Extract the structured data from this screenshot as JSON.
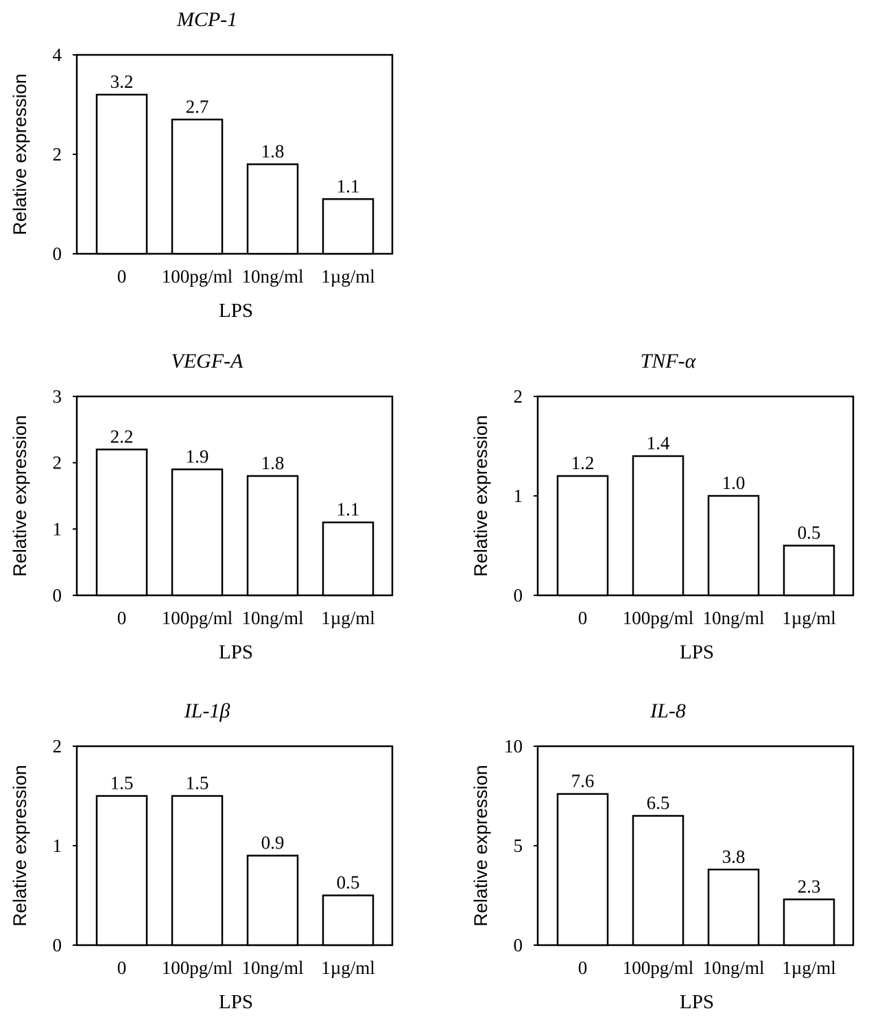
{
  "chart_data": [
    {
      "type": "bar",
      "title": "MCP-1",
      "xlabel": "LPS",
      "ylabel": "Relative expression",
      "categories": [
        "0",
        "100pg/ml",
        "10ng/ml",
        "1µg/ml"
      ],
      "values": [
        3.2,
        2.7,
        1.8,
        1.1
      ],
      "value_labels": [
        "3.2",
        "2.7",
        "1.8",
        "1.1"
      ],
      "ylim": [
        0,
        4
      ],
      "yticks": [
        0,
        2,
        4
      ]
    },
    {
      "type": "bar",
      "title": "VEGF-A",
      "xlabel": "LPS",
      "ylabel": "Relative expression",
      "categories": [
        "0",
        "100pg/ml",
        "10ng/ml",
        "1µg/ml"
      ],
      "values": [
        2.2,
        1.9,
        1.8,
        1.1
      ],
      "value_labels": [
        "2.2",
        "1.9",
        "1.8",
        "1.1"
      ],
      "ylim": [
        0,
        3
      ],
      "yticks": [
        0,
        1,
        2,
        3
      ]
    },
    {
      "type": "bar",
      "title": "TNF-α",
      "xlabel": "LPS",
      "ylabel": "Relative expression",
      "categories": [
        "0",
        "100pg/ml",
        "10ng/ml",
        "1µg/ml"
      ],
      "values": [
        1.2,
        1.4,
        1.0,
        0.5
      ],
      "value_labels": [
        "1.2",
        "1.4",
        "1.0",
        "0.5"
      ],
      "ylim": [
        0,
        2
      ],
      "yticks": [
        0,
        1,
        2
      ]
    },
    {
      "type": "bar",
      "title": "IL-1β",
      "xlabel": "LPS",
      "ylabel": "Relative expression",
      "categories": [
        "0",
        "100pg/ml",
        "10ng/ml",
        "1µg/ml"
      ],
      "values": [
        1.5,
        1.5,
        0.9,
        0.5
      ],
      "value_labels": [
        "1.5",
        "1.5",
        "0.9",
        "0.5"
      ],
      "ylim": [
        0,
        2
      ],
      "yticks": [
        0,
        1,
        2
      ]
    },
    {
      "type": "bar",
      "title": "IL-8",
      "xlabel": "LPS",
      "ylabel": "Relative expression",
      "categories": [
        "0",
        "100pg/ml",
        "10ng/ml",
        "1µg/ml"
      ],
      "values": [
        7.6,
        6.5,
        3.8,
        2.3
      ],
      "value_labels": [
        "7.6",
        "6.5",
        "3.8",
        "2.3"
      ],
      "ylim": [
        0,
        10
      ],
      "yticks": [
        0,
        5,
        10
      ]
    }
  ]
}
